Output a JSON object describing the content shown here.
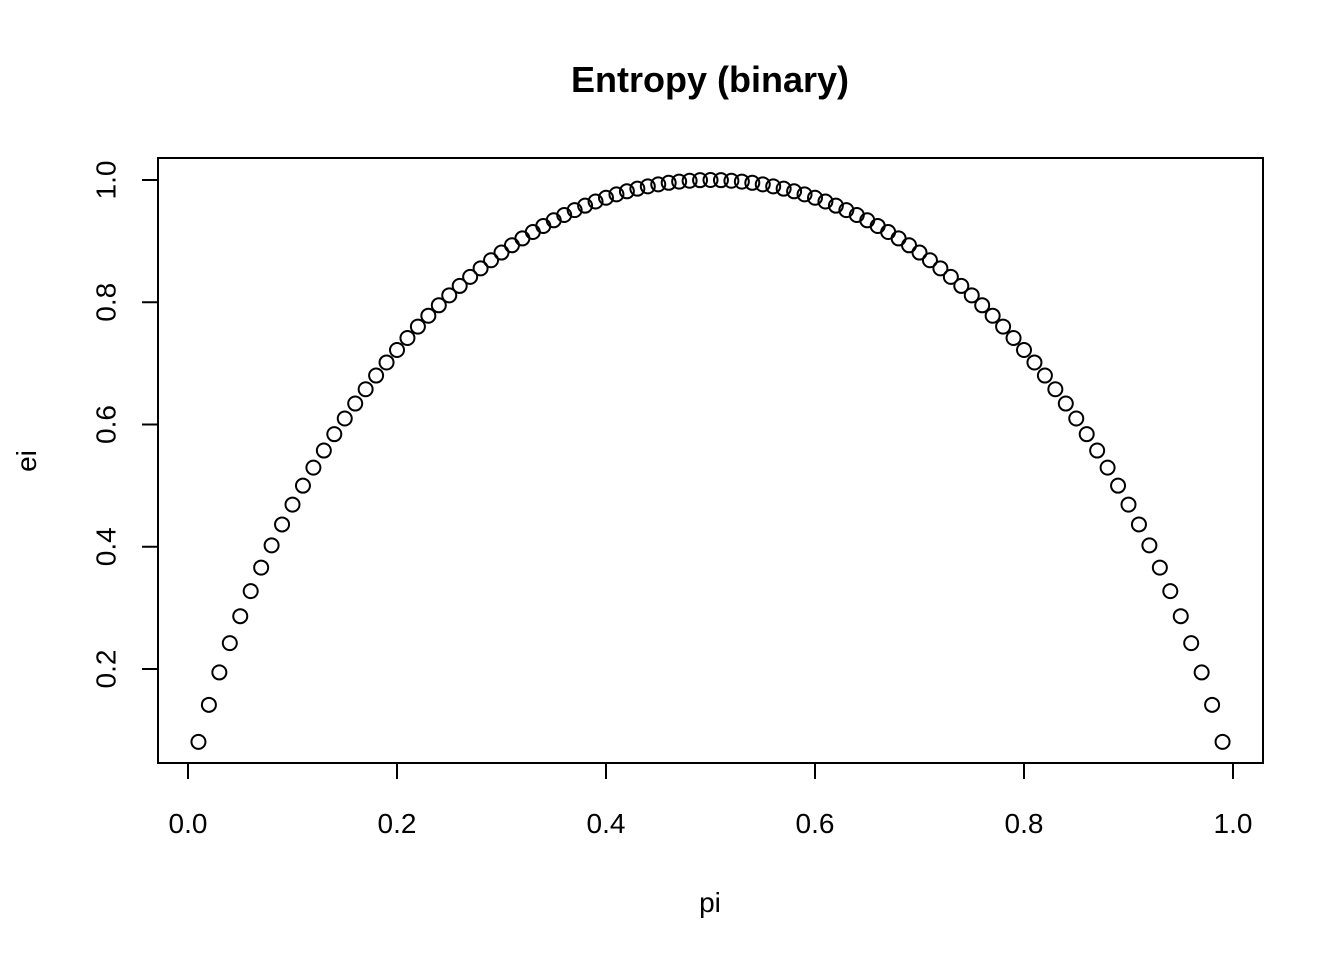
{
  "chart_data": {
    "type": "scatter",
    "title": "Entropy (binary)",
    "xlabel": "pi",
    "ylabel": "ei",
    "xlim": [
      0.0,
      1.0
    ],
    "ylim": [
      0.08,
      1.0
    ],
    "xticks": [
      0.0,
      0.2,
      0.4,
      0.6,
      0.8,
      1.0
    ],
    "xtick_labels": [
      "0.0",
      "0.2",
      "0.4",
      "0.6",
      "0.8",
      "1.0"
    ],
    "yticks": [
      0.2,
      0.4,
      0.6,
      0.8,
      1.0
    ],
    "ytick_labels": [
      "0.2",
      "0.4",
      "0.6",
      "0.8",
      "1.0"
    ],
    "grid": false,
    "marker": "open-circle",
    "series": [
      {
        "name": "ei",
        "x": [
          0.01,
          0.02,
          0.03,
          0.04,
          0.05,
          0.06,
          0.07,
          0.08,
          0.09,
          0.1,
          0.11,
          0.12,
          0.13,
          0.14,
          0.15,
          0.16,
          0.17,
          0.18,
          0.19,
          0.2,
          0.21,
          0.22,
          0.23,
          0.24,
          0.25,
          0.26,
          0.27,
          0.28,
          0.29,
          0.3,
          0.31,
          0.32,
          0.33,
          0.34,
          0.35,
          0.36,
          0.37,
          0.38,
          0.39,
          0.4,
          0.41,
          0.42,
          0.43,
          0.44,
          0.45,
          0.46,
          0.47,
          0.48,
          0.49,
          0.5,
          0.51,
          0.52,
          0.53,
          0.54,
          0.55,
          0.56,
          0.57,
          0.58,
          0.59,
          0.6,
          0.61,
          0.62,
          0.63,
          0.64,
          0.65,
          0.66,
          0.67,
          0.68,
          0.69,
          0.7,
          0.71,
          0.72,
          0.73,
          0.74,
          0.75,
          0.76,
          0.77,
          0.78,
          0.79,
          0.8,
          0.81,
          0.82,
          0.83,
          0.84,
          0.85,
          0.86,
          0.87,
          0.88,
          0.89,
          0.9,
          0.91,
          0.92,
          0.93,
          0.94,
          0.95,
          0.96,
          0.97,
          0.98,
          0.99
        ],
        "y": [
          0.0808,
          0.1414,
          0.1944,
          0.2423,
          0.2864,
          0.3274,
          0.3659,
          0.4022,
          0.4365,
          0.469,
          0.4999,
          0.5294,
          0.5574,
          0.5842,
          0.6098,
          0.6343,
          0.6577,
          0.6801,
          0.7015,
          0.7219,
          0.7415,
          0.7602,
          0.778,
          0.795,
          0.8113,
          0.8267,
          0.8415,
          0.8555,
          0.8687,
          0.8813,
          0.8932,
          0.9044,
          0.9149,
          0.9248,
          0.9341,
          0.9427,
          0.9507,
          0.958,
          0.9648,
          0.971,
          0.9765,
          0.9815,
          0.9858,
          0.9896,
          0.9928,
          0.9954,
          0.9974,
          0.9988,
          0.9997,
          1.0,
          0.9997,
          0.9988,
          0.9974,
          0.9954,
          0.9928,
          0.9896,
          0.9858,
          0.9815,
          0.9765,
          0.971,
          0.9648,
          0.958,
          0.9507,
          0.9427,
          0.9341,
          0.9248,
          0.9149,
          0.9044,
          0.8932,
          0.8813,
          0.8687,
          0.8555,
          0.8415,
          0.8267,
          0.8113,
          0.795,
          0.778,
          0.7602,
          0.7415,
          0.7219,
          0.7015,
          0.6801,
          0.6577,
          0.6343,
          0.6098,
          0.5842,
          0.5574,
          0.5294,
          0.4999,
          0.469,
          0.4365,
          0.4022,
          0.3659,
          0.3274,
          0.2864,
          0.2423,
          0.1944,
          0.1414,
          0.0808
        ]
      }
    ]
  }
}
